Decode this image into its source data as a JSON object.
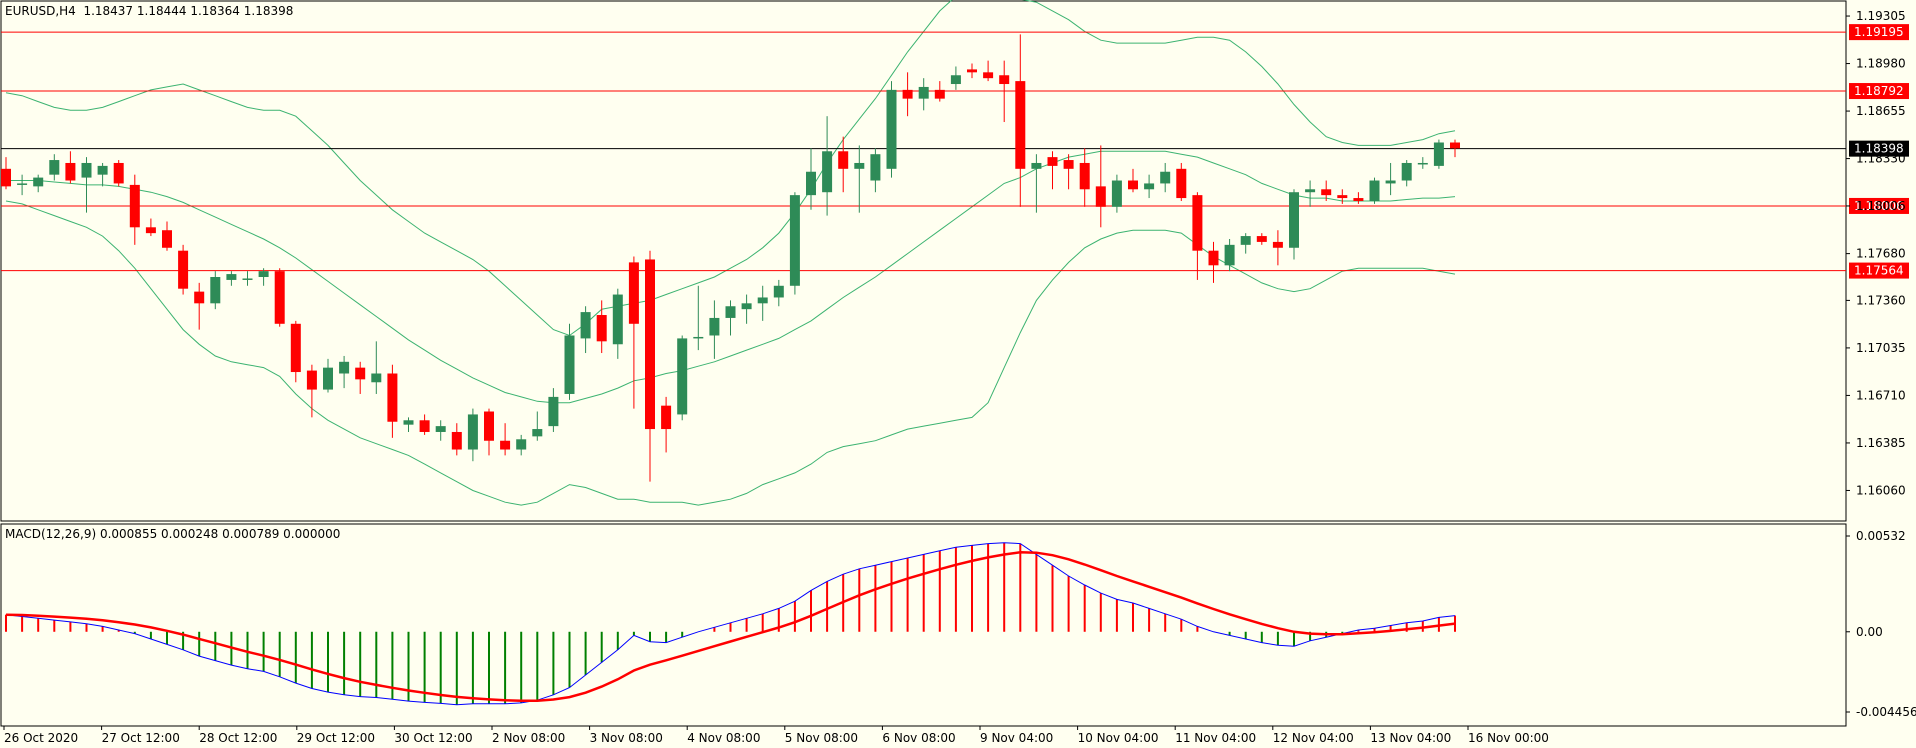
{
  "symbol_header": "EURUSD,H4  1.18437 1.18444 1.18364 1.18398",
  "macd_header": "MACD(12,26,9) 0.000855 0.000248 0.000789 0.000000",
  "colors": {
    "background": "#fffff0",
    "bull": "#2e8b57",
    "bear": "#ff0000",
    "bands": "#3cb371",
    "level_line": "#ff0000",
    "current_line": "#000000",
    "macd_main": "#0000ff",
    "macd_signal": "#ff0000",
    "hist_positive": "#ff0000",
    "hist_negative": "#008000"
  },
  "price_axis": {
    "labels": [
      "1.19305",
      "1.18980",
      "1.18655",
      "1.18330",
      "1.18006",
      "1.17680",
      "1.17360",
      "1.17035",
      "1.16710",
      "1.16385",
      "1.16060"
    ]
  },
  "horizontal_levels": [
    {
      "label": "1.19195",
      "value": 1.19195,
      "kind": "level"
    },
    {
      "label": "1.18792",
      "value": 1.18792,
      "kind": "level"
    },
    {
      "label": "1.18398",
      "value": 1.18398,
      "kind": "current"
    },
    {
      "label": "1.18006",
      "value": 1.18006,
      "kind": "level"
    },
    {
      "label": "1.17564",
      "value": 1.17564,
      "kind": "level"
    }
  ],
  "time_axis": {
    "labels": [
      "26 Oct 2020",
      "27 Oct 12:00",
      "28 Oct 12:00",
      "29 Oct 12:00",
      "30 Oct 12:00",
      "2 Nov 08:00",
      "3 Nov 08:00",
      "4 Nov 08:00",
      "5 Nov 08:00",
      "6 Nov 08:00",
      "9 Nov 04:00",
      "10 Nov 04:00",
      "11 Nov 04:00",
      "12 Nov 04:00",
      "13 Nov 04:00",
      "16 Nov 00:00"
    ]
  },
  "macd_axis": {
    "labels": [
      "0.00532",
      "0.00",
      "-0.004456"
    ]
  },
  "chart_data": {
    "type": "candlestick",
    "timeframe": "H4",
    "ylim": [
      1.1594,
      1.1936
    ],
    "candles": [
      {
        "o": 1.1826,
        "h": 1.1834,
        "l": 1.1812,
        "c": 1.1814
      },
      {
        "o": 1.1815,
        "h": 1.1822,
        "l": 1.1808,
        "c": 1.1816
      },
      {
        "o": 1.1814,
        "h": 1.1822,
        "l": 1.181,
        "c": 1.182
      },
      {
        "o": 1.1822,
        "h": 1.1836,
        "l": 1.1818,
        "c": 1.1832
      },
      {
        "o": 1.183,
        "h": 1.1838,
        "l": 1.1816,
        "c": 1.1818
      },
      {
        "o": 1.182,
        "h": 1.1834,
        "l": 1.1796,
        "c": 1.183
      },
      {
        "o": 1.1822,
        "h": 1.183,
        "l": 1.1814,
        "c": 1.1828
      },
      {
        "o": 1.183,
        "h": 1.1832,
        "l": 1.1814,
        "c": 1.1816
      },
      {
        "o": 1.1815,
        "h": 1.1822,
        "l": 1.1774,
        "c": 1.1786
      },
      {
        "o": 1.1786,
        "h": 1.1792,
        "l": 1.178,
        "c": 1.1782
      },
      {
        "o": 1.1784,
        "h": 1.179,
        "l": 1.177,
        "c": 1.1772
      },
      {
        "o": 1.177,
        "h": 1.1774,
        "l": 1.174,
        "c": 1.1744
      },
      {
        "o": 1.1742,
        "h": 1.1748,
        "l": 1.1716,
        "c": 1.1734
      },
      {
        "o": 1.1734,
        "h": 1.1756,
        "l": 1.173,
        "c": 1.1752
      },
      {
        "o": 1.175,
        "h": 1.1756,
        "l": 1.1746,
        "c": 1.1754
      },
      {
        "o": 1.175,
        "h": 1.1756,
        "l": 1.1746,
        "c": 1.1751
      },
      {
        "o": 1.1752,
        "h": 1.1758,
        "l": 1.1746,
        "c": 1.1756
      },
      {
        "o": 1.1756,
        "h": 1.1758,
        "l": 1.1718,
        "c": 1.172
      },
      {
        "o": 1.172,
        "h": 1.1722,
        "l": 1.168,
        "c": 1.1687
      },
      {
        "o": 1.1688,
        "h": 1.1692,
        "l": 1.1656,
        "c": 1.1675
      },
      {
        "o": 1.1675,
        "h": 1.1696,
        "l": 1.1673,
        "c": 1.169
      },
      {
        "o": 1.1686,
        "h": 1.1698,
        "l": 1.1676,
        "c": 1.1694
      },
      {
        "o": 1.169,
        "h": 1.1694,
        "l": 1.1672,
        "c": 1.1682
      },
      {
        "o": 1.168,
        "h": 1.1708,
        "l": 1.1672,
        "c": 1.1686
      },
      {
        "o": 1.1686,
        "h": 1.1692,
        "l": 1.1642,
        "c": 1.1653
      },
      {
        "o": 1.1651,
        "h": 1.1656,
        "l": 1.1646,
        "c": 1.1654
      },
      {
        "o": 1.1654,
        "h": 1.1658,
        "l": 1.1644,
        "c": 1.1646
      },
      {
        "o": 1.1646,
        "h": 1.1654,
        "l": 1.164,
        "c": 1.165
      },
      {
        "o": 1.1646,
        "h": 1.1652,
        "l": 1.163,
        "c": 1.1634
      },
      {
        "o": 1.1634,
        "h": 1.1662,
        "l": 1.1626,
        "c": 1.1658
      },
      {
        "o": 1.166,
        "h": 1.1662,
        "l": 1.163,
        "c": 1.164
      },
      {
        "o": 1.164,
        "h": 1.1652,
        "l": 1.163,
        "c": 1.1634
      },
      {
        "o": 1.1634,
        "h": 1.1644,
        "l": 1.163,
        "c": 1.1641
      },
      {
        "o": 1.1643,
        "h": 1.166,
        "l": 1.164,
        "c": 1.1648
      },
      {
        "o": 1.165,
        "h": 1.1676,
        "l": 1.1646,
        "c": 1.167
      },
      {
        "o": 1.1672,
        "h": 1.172,
        "l": 1.1668,
        "c": 1.1712
      },
      {
        "o": 1.171,
        "h": 1.1732,
        "l": 1.17,
        "c": 1.1728
      },
      {
        "o": 1.1726,
        "h": 1.1736,
        "l": 1.17,
        "c": 1.1708
      },
      {
        "o": 1.1706,
        "h": 1.1744,
        "l": 1.1696,
        "c": 1.174
      },
      {
        "o": 1.1762,
        "h": 1.1766,
        "l": 1.1662,
        "c": 1.172
      },
      {
        "o": 1.1764,
        "h": 1.177,
        "l": 1.1612,
        "c": 1.1648
      },
      {
        "o": 1.1664,
        "h": 1.167,
        "l": 1.1632,
        "c": 1.1648
      },
      {
        "o": 1.1658,
        "h": 1.1712,
        "l": 1.1654,
        "c": 1.171
      },
      {
        "o": 1.171,
        "h": 1.1746,
        "l": 1.1702,
        "c": 1.1711
      },
      {
        "o": 1.1712,
        "h": 1.1736,
        "l": 1.1696,
        "c": 1.1724
      },
      {
        "o": 1.1724,
        "h": 1.1736,
        "l": 1.1712,
        "c": 1.1732
      },
      {
        "o": 1.173,
        "h": 1.174,
        "l": 1.172,
        "c": 1.1734
      },
      {
        "o": 1.1734,
        "h": 1.1746,
        "l": 1.1722,
        "c": 1.1738
      },
      {
        "o": 1.1738,
        "h": 1.175,
        "l": 1.1732,
        "c": 1.1746
      },
      {
        "o": 1.1746,
        "h": 1.181,
        "l": 1.174,
        "c": 1.1808
      },
      {
        "o": 1.1808,
        "h": 1.184,
        "l": 1.1798,
        "c": 1.1824
      },
      {
        "o": 1.181,
        "h": 1.1862,
        "l": 1.1794,
        "c": 1.1838
      },
      {
        "o": 1.1838,
        "h": 1.1848,
        "l": 1.181,
        "c": 1.1826
      },
      {
        "o": 1.1826,
        "h": 1.1842,
        "l": 1.1796,
        "c": 1.183
      },
      {
        "o": 1.1818,
        "h": 1.184,
        "l": 1.181,
        "c": 1.1836
      },
      {
        "o": 1.1826,
        "h": 1.1886,
        "l": 1.182,
        "c": 1.188
      },
      {
        "o": 1.188,
        "h": 1.1892,
        "l": 1.1862,
        "c": 1.1874
      },
      {
        "o": 1.1874,
        "h": 1.1888,
        "l": 1.1866,
        "c": 1.1882
      },
      {
        "o": 1.188,
        "h": 1.1886,
        "l": 1.1872,
        "c": 1.1874
      },
      {
        "o": 1.1884,
        "h": 1.1896,
        "l": 1.188,
        "c": 1.189
      },
      {
        "o": 1.1894,
        "h": 1.1898,
        "l": 1.1888,
        "c": 1.1892
      },
      {
        "o": 1.1892,
        "h": 1.19,
        "l": 1.1886,
        "c": 1.1888
      },
      {
        "o": 1.189,
        "h": 1.19,
        "l": 1.1858,
        "c": 1.1884
      },
      {
        "o": 1.1886,
        "h": 1.1918,
        "l": 1.18,
        "c": 1.1826
      },
      {
        "o": 1.1826,
        "h": 1.1836,
        "l": 1.1796,
        "c": 1.183
      },
      {
        "o": 1.1834,
        "h": 1.1838,
        "l": 1.1812,
        "c": 1.1828
      },
      {
        "o": 1.1832,
        "h": 1.1836,
        "l": 1.1812,
        "c": 1.1826
      },
      {
        "o": 1.183,
        "h": 1.184,
        "l": 1.18,
        "c": 1.1812
      },
      {
        "o": 1.1814,
        "h": 1.1842,
        "l": 1.1786,
        "c": 1.18
      },
      {
        "o": 1.18,
        "h": 1.1822,
        "l": 1.1796,
        "c": 1.1818
      },
      {
        "o": 1.1818,
        "h": 1.1826,
        "l": 1.181,
        "c": 1.1812
      },
      {
        "o": 1.1812,
        "h": 1.1822,
        "l": 1.1806,
        "c": 1.1816
      },
      {
        "o": 1.1816,
        "h": 1.183,
        "l": 1.181,
        "c": 1.1824
      },
      {
        "o": 1.1826,
        "h": 1.183,
        "l": 1.1804,
        "c": 1.1806
      },
      {
        "o": 1.1808,
        "h": 1.181,
        "l": 1.175,
        "c": 1.177
      },
      {
        "o": 1.177,
        "h": 1.1776,
        "l": 1.1748,
        "c": 1.176
      },
      {
        "o": 1.176,
        "h": 1.1778,
        "l": 1.1756,
        "c": 1.1774
      },
      {
        "o": 1.1774,
        "h": 1.1782,
        "l": 1.1768,
        "c": 1.178
      },
      {
        "o": 1.178,
        "h": 1.1782,
        "l": 1.1774,
        "c": 1.1776
      },
      {
        "o": 1.1776,
        "h": 1.1784,
        "l": 1.176,
        "c": 1.1772
      },
      {
        "o": 1.1772,
        "h": 1.1812,
        "l": 1.1764,
        "c": 1.181
      },
      {
        "o": 1.181,
        "h": 1.1818,
        "l": 1.18,
        "c": 1.1812
      },
      {
        "o": 1.1812,
        "h": 1.1818,
        "l": 1.1804,
        "c": 1.1808
      },
      {
        "o": 1.1808,
        "h": 1.1812,
        "l": 1.1802,
        "c": 1.1806
      },
      {
        "o": 1.1806,
        "h": 1.181,
        "l": 1.1802,
        "c": 1.1804
      },
      {
        "o": 1.1804,
        "h": 1.182,
        "l": 1.1802,
        "c": 1.1818
      },
      {
        "o": 1.1816,
        "h": 1.183,
        "l": 1.1808,
        "c": 1.1818
      },
      {
        "o": 1.1818,
        "h": 1.1832,
        "l": 1.1814,
        "c": 1.183
      },
      {
        "o": 1.183,
        "h": 1.1834,
        "l": 1.1826,
        "c": 1.183
      },
      {
        "o": 1.1828,
        "h": 1.1846,
        "l": 1.1826,
        "c": 1.1844
      },
      {
        "o": 1.1844,
        "h": 1.1846,
        "l": 1.1834,
        "c": 1.184
      }
    ],
    "bollinger": {
      "upper": [
        1.1878,
        1.1876,
        1.1872,
        1.1868,
        1.1866,
        1.1866,
        1.1868,
        1.1872,
        1.1876,
        1.188,
        1.1882,
        1.1884,
        1.188,
        1.1876,
        1.1872,
        1.1868,
        1.1866,
        1.1866,
        1.1862,
        1.1852,
        1.1842,
        1.183,
        1.1818,
        1.1808,
        1.1798,
        1.179,
        1.1782,
        1.1776,
        1.177,
        1.1764,
        1.1756,
        1.1746,
        1.1736,
        1.1726,
        1.1716,
        1.1712,
        1.172,
        1.173,
        1.1732,
        1.1734,
        1.1736,
        1.174,
        1.1744,
        1.1748,
        1.1752,
        1.1758,
        1.1764,
        1.1772,
        1.1782,
        1.1796,
        1.1812,
        1.183,
        1.1846,
        1.186,
        1.1874,
        1.189,
        1.1906,
        1.192,
        1.1934,
        1.1944,
        1.1946,
        1.1946,
        1.1944,
        1.1942,
        1.194,
        1.1934,
        1.1928,
        1.192,
        1.1914,
        1.1912,
        1.1912,
        1.1912,
        1.1912,
        1.1914,
        1.1916,
        1.1916,
        1.1914,
        1.1906,
        1.1896,
        1.1884,
        1.187,
        1.1858,
        1.1848,
        1.1844,
        1.1842,
        1.1842,
        1.1842,
        1.1844,
        1.1846,
        1.185,
        1.1852
      ],
      "middle": [
        1.1818,
        1.1818,
        1.1818,
        1.1817,
        1.1816,
        1.1815,
        1.1815,
        1.1814,
        1.1812,
        1.181,
        1.1807,
        1.1803,
        1.1798,
        1.1793,
        1.1788,
        1.1783,
        1.1778,
        1.1772,
        1.1765,
        1.1757,
        1.1749,
        1.1741,
        1.1733,
        1.1725,
        1.1717,
        1.1709,
        1.1702,
        1.1695,
        1.1689,
        1.1683,
        1.1678,
        1.1673,
        1.167,
        1.1667,
        1.1666,
        1.1666,
        1.1669,
        1.1672,
        1.1676,
        1.1681,
        1.1683,
        1.1686,
        1.1688,
        1.1691,
        1.1694,
        1.1698,
        1.1702,
        1.1706,
        1.171,
        1.1716,
        1.1722,
        1.173,
        1.1738,
        1.1745,
        1.1752,
        1.176,
        1.1768,
        1.1776,
        1.1784,
        1.1792,
        1.18,
        1.1808,
        1.1816,
        1.182,
        1.1826,
        1.183,
        1.1834,
        1.1836,
        1.1838,
        1.1838,
        1.1838,
        1.1838,
        1.1838,
        1.1836,
        1.1834,
        1.183,
        1.1826,
        1.1822,
        1.1816,
        1.1812,
        1.1808,
        1.1806,
        1.1806,
        1.1804,
        1.1804,
        1.1804,
        1.1804,
        1.1805,
        1.1806,
        1.1806,
        1.1807
      ],
      "lower": [
        1.1804,
        1.1802,
        1.1798,
        1.1794,
        1.179,
        1.1786,
        1.178,
        1.177,
        1.1758,
        1.1744,
        1.173,
        1.1716,
        1.1706,
        1.1698,
        1.1694,
        1.1692,
        1.169,
        1.1684,
        1.1672,
        1.1662,
        1.1654,
        1.1648,
        1.1642,
        1.1638,
        1.1634,
        1.163,
        1.1624,
        1.1618,
        1.1612,
        1.1606,
        1.1602,
        1.1598,
        1.1596,
        1.1598,
        1.1604,
        1.161,
        1.1608,
        1.1604,
        1.16,
        1.16,
        1.1598,
        1.1598,
        1.1598,
        1.1596,
        1.1598,
        1.16,
        1.1604,
        1.161,
        1.1614,
        1.1618,
        1.1624,
        1.1632,
        1.1636,
        1.1638,
        1.164,
        1.1644,
        1.1648,
        1.165,
        1.1652,
        1.1654,
        1.1656,
        1.1666,
        1.169,
        1.1714,
        1.1736,
        1.175,
        1.1762,
        1.1772,
        1.1778,
        1.1782,
        1.1784,
        1.1784,
        1.1784,
        1.1782,
        1.1774,
        1.1766,
        1.176,
        1.1754,
        1.1748,
        1.1744,
        1.1742,
        1.1744,
        1.175,
        1.1756,
        1.1758,
        1.1758,
        1.1758,
        1.1758,
        1.1758,
        1.1756,
        1.1754
      ]
    },
    "macd": {
      "ylim": [
        -0.004456,
        0.00532
      ],
      "main": [
        0.00095,
        0.00085,
        0.00075,
        0.00065,
        0.00055,
        0.00045,
        0.0003,
        0.0001,
        -0.0001,
        -0.0004,
        -0.0007,
        -0.001,
        -0.00135,
        -0.0016,
        -0.00185,
        -0.00205,
        -0.0022,
        -0.0025,
        -0.00285,
        -0.00315,
        -0.00335,
        -0.0035,
        -0.0036,
        -0.00365,
        -0.00375,
        -0.00385,
        -0.00392,
        -0.00398,
        -0.00405,
        -0.004,
        -0.004,
        -0.004,
        -0.00395,
        -0.0038,
        -0.0035,
        -0.0031,
        -0.0024,
        -0.0017,
        -0.001,
        -0.0002,
        -0.00055,
        -0.0006,
        -0.0003,
        0.0,
        0.00025,
        0.0005,
        0.00075,
        0.001,
        0.0013,
        0.0017,
        0.0023,
        0.0028,
        0.0032,
        0.0035,
        0.0037,
        0.0039,
        0.0041,
        0.0043,
        0.0045,
        0.0047,
        0.0048,
        0.0049,
        0.00495,
        0.0049,
        0.0043,
        0.0037,
        0.0031,
        0.0026,
        0.00215,
        0.0018,
        0.0016,
        0.0013,
        0.001,
        0.0007,
        0.0003,
        0.0,
        -0.0002,
        -0.0004,
        -0.0006,
        -0.00075,
        -0.0008,
        -0.0005,
        -0.0003,
        -0.0001,
        0.0001,
        0.0002,
        0.00035,
        0.0005,
        0.0006,
        0.0008,
        0.0009
      ]
    }
  }
}
